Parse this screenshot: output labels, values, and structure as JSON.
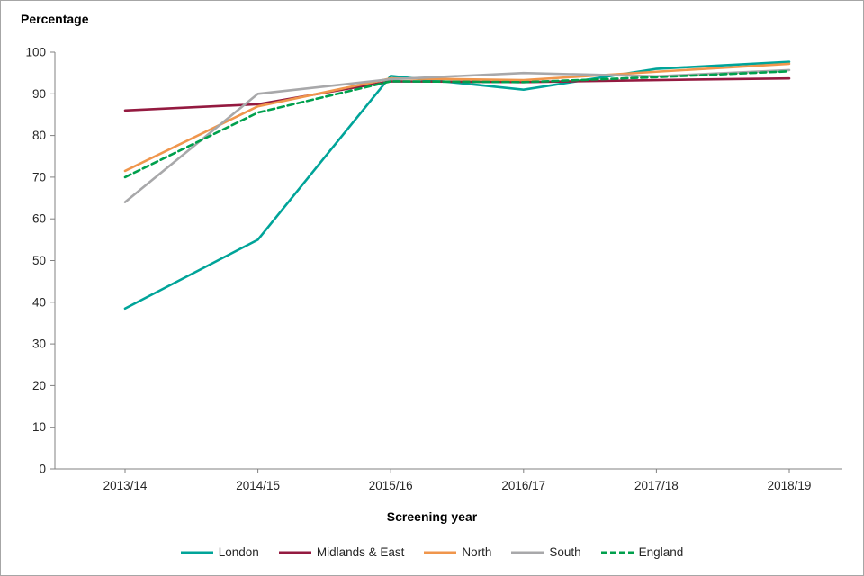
{
  "page": {
    "y_axis_title": "Percentage",
    "x_axis_title": "Screening year"
  },
  "chart_data": {
    "type": "line",
    "title": "",
    "xlabel": "Screening year",
    "ylabel": "Percentage",
    "categories": [
      "2013/14",
      "2014/15",
      "2015/16",
      "2016/17",
      "2017/18",
      "2018/19"
    ],
    "series": [
      {
        "name": "London",
        "color": "#00a499",
        "dash": null,
        "values": [
          38.5,
          55,
          94.3,
          91,
          96,
          97.7
        ]
      },
      {
        "name": "Midlands & East",
        "color": "#941a40",
        "dash": null,
        "values": [
          86,
          87.5,
          93,
          92.8,
          93.3,
          93.7
        ]
      },
      {
        "name": "North",
        "color": "#f0964c",
        "dash": null,
        "values": [
          71.5,
          87,
          93.7,
          93.3,
          95.3,
          97.2
        ]
      },
      {
        "name": "South",
        "color": "#a8a8aa",
        "dash": null,
        "values": [
          64,
          90,
          93.5,
          95,
          94.2,
          95.7
        ]
      },
      {
        "name": "England",
        "color": "#00a04d",
        "dash": "7,4",
        "values": [
          70,
          85.5,
          93,
          92.8,
          94,
          95.4
        ]
      }
    ],
    "ylim": [
      0,
      100
    ],
    "ytick_step": 10,
    "grid": false,
    "legend_position": "bottom",
    "axis_color": "#808080",
    "tick_label_color": "#262626"
  }
}
